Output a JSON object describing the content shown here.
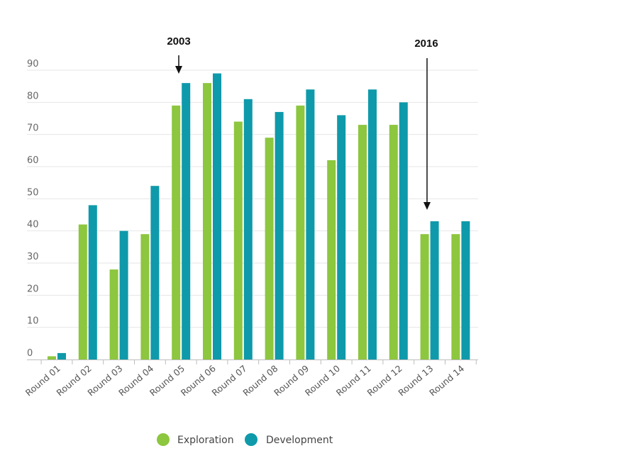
{
  "chart_data": {
    "type": "bar",
    "categories": [
      "Round 01",
      "Round 02",
      "Round 03",
      "Round 04",
      "Round 05",
      "Round 06",
      "Round 07",
      "Round 08",
      "Round 09",
      "Round 10",
      "Round 11",
      "Round 12",
      "Round 13",
      "Round 14"
    ],
    "series": [
      {
        "name": "Exploration",
        "color": "#8dc63f",
        "values": [
          1,
          42,
          28,
          39,
          79,
          86,
          74,
          69,
          79,
          62,
          73,
          73,
          39,
          39
        ]
      },
      {
        "name": "Development",
        "color": "#0e9aaa",
        "values": [
          2,
          48,
          40,
          54,
          86,
          89,
          81,
          77,
          84,
          76,
          84,
          80,
          43,
          43
        ]
      }
    ],
    "yticks": [
      0,
      10,
      20,
      30,
      40,
      50,
      60,
      70,
      80,
      90
    ],
    "ylim": [
      0,
      90
    ],
    "grid": true,
    "legend_position": "bottom",
    "annotations": [
      {
        "text": "2003",
        "category": "Round 05"
      },
      {
        "text": "2016",
        "category": "Round 13"
      }
    ]
  }
}
